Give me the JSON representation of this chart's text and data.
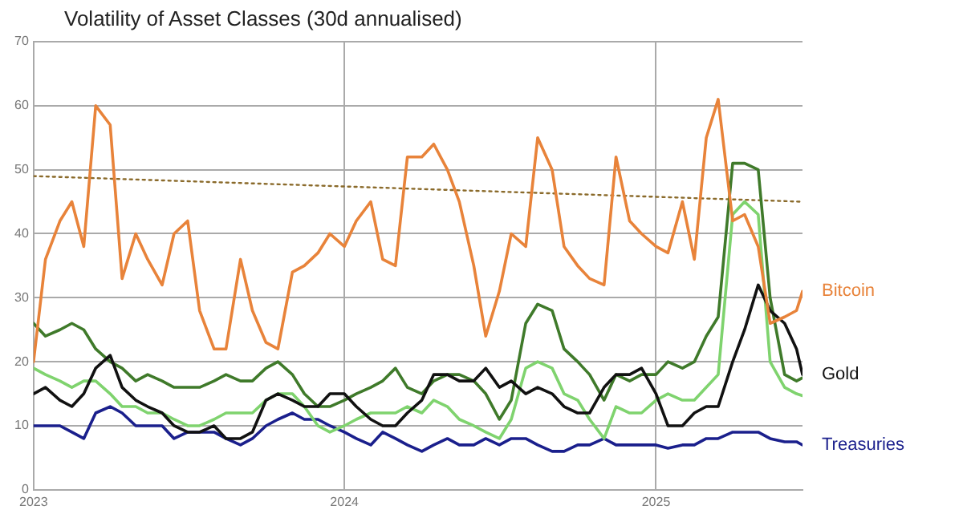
{
  "chart_data": {
    "type": "line",
    "title": "Volatility of Asset Classes (30d annualised)",
    "x": [
      "2023-01-01",
      "2023-01-15",
      "2023-02-01",
      "2023-02-15",
      "2023-03-01",
      "2023-03-15",
      "2023-04-01",
      "2023-04-15",
      "2023-05-01",
      "2023-05-15",
      "2023-06-01",
      "2023-06-15",
      "2023-07-01",
      "2023-07-15",
      "2023-08-01",
      "2023-08-15",
      "2023-09-01",
      "2023-09-15",
      "2023-10-01",
      "2023-10-15",
      "2023-11-01",
      "2023-11-15",
      "2023-12-01",
      "2023-12-15",
      "2024-01-01",
      "2024-01-15",
      "2024-02-01",
      "2024-02-15",
      "2024-03-01",
      "2024-03-15",
      "2024-04-01",
      "2024-04-15",
      "2024-05-01",
      "2024-05-15",
      "2024-06-01",
      "2024-06-15",
      "2024-07-01",
      "2024-07-15",
      "2024-08-01",
      "2024-08-15",
      "2024-09-01",
      "2024-09-15",
      "2024-10-01",
      "2024-10-15",
      "2024-11-01",
      "2024-11-15",
      "2024-12-01",
      "2024-12-15",
      "2025-01-01",
      "2025-01-15",
      "2025-02-01",
      "2025-02-15",
      "2025-03-01",
      "2025-03-15",
      "2025-04-01",
      "2025-04-15",
      "2025-05-01",
      "2025-05-15",
      "2025-06-01",
      "2025-06-15",
      "2025-06-22"
    ],
    "series": [
      {
        "name": "Bitcoin",
        "color": "#e8833a",
        "values": [
          20,
          36,
          42,
          45,
          38,
          60,
          57,
          33,
          40,
          36,
          32,
          40,
          42,
          28,
          22,
          22,
          36,
          28,
          23,
          22,
          34,
          35,
          37,
          40,
          38,
          42,
          45,
          36,
          35,
          52,
          52,
          54,
          50,
          45,
          35,
          24,
          31,
          40,
          38,
          55,
          50,
          38,
          35,
          33,
          32,
          52,
          42,
          40,
          38,
          37,
          45,
          36,
          55,
          61,
          42,
          43,
          38,
          26,
          27,
          28,
          31
        ]
      },
      {
        "name": "Gold",
        "color": "#111111",
        "values": [
          15,
          16,
          14,
          13,
          15,
          19,
          21,
          16,
          14,
          13,
          12,
          10,
          9,
          9,
          10,
          8,
          8,
          9,
          14,
          15,
          14,
          13,
          13,
          15,
          15,
          13,
          11,
          10,
          10,
          12,
          14,
          18,
          18,
          17,
          17,
          19,
          16,
          17,
          15,
          16,
          15,
          13,
          12,
          12,
          16,
          18,
          18,
          19,
          15,
          10,
          10,
          12,
          13,
          13,
          20,
          25,
          32,
          28,
          26,
          22,
          18
        ]
      },
      {
        "color": "#3f7a2a",
        "values": [
          26,
          24,
          25,
          26,
          25,
          22,
          20,
          19,
          17,
          18,
          17,
          16,
          16,
          16,
          17,
          18,
          17,
          17,
          19,
          20,
          18,
          15,
          13,
          13,
          14,
          15,
          16,
          17,
          19,
          16,
          15,
          17,
          18,
          18,
          17,
          15,
          11,
          14,
          26,
          29,
          28,
          22,
          20,
          18,
          14,
          18,
          17,
          18,
          18,
          20,
          19,
          20,
          24,
          27,
          51,
          51,
          50,
          30,
          18,
          17,
          17.5
        ]
      },
      {
        "color": "#7fd36e",
        "values": [
          19,
          18,
          17,
          16,
          17,
          17,
          15,
          13,
          13,
          12,
          12,
          11,
          10,
          10,
          11,
          12,
          12,
          12,
          14,
          15,
          15,
          13,
          10,
          9,
          10,
          11,
          12,
          12,
          12,
          13,
          12,
          14,
          13,
          11,
          10,
          9,
          8,
          11,
          19,
          20,
          19,
          15,
          14,
          11,
          8,
          13,
          12,
          12,
          14,
          15,
          14,
          14,
          16,
          18,
          43,
          45,
          43,
          20,
          16,
          15,
          14.7
        ]
      },
      {
        "name": "Treasuries",
        "color": "#1a1f8c",
        "values": [
          10,
          10,
          10,
          9,
          8,
          12,
          13,
          12,
          10,
          10,
          10,
          8,
          9,
          9,
          9,
          8,
          7,
          8,
          10,
          11,
          12,
          11,
          11,
          10,
          9,
          8,
          7,
          9,
          8,
          7,
          6,
          7,
          8,
          7,
          7,
          8,
          7,
          8,
          8,
          7,
          6,
          6,
          7,
          7,
          8,
          7,
          7,
          7,
          7,
          6.5,
          7,
          7,
          8,
          8,
          9,
          9,
          9,
          8,
          7.5,
          7.5,
          7
        ]
      },
      {
        "type": "line",
        "x": [
          "2023-01-01",
          "2025-06-22"
        ],
        "color": "#8a6a2a",
        "line_style": "dotted",
        "values": [
          49,
          45
        ]
      }
    ],
    "xlim": [
      "2023-01-01",
      "2025-06-22"
    ],
    "xticks": [
      "2023",
      "2024",
      "2025"
    ],
    "ylim": [
      0,
      70
    ],
    "yticks": [
      0,
      10,
      20,
      30,
      40,
      50,
      60,
      70
    ],
    "grid": true,
    "legend": false,
    "marker": "none",
    "line_style": "solid"
  }
}
